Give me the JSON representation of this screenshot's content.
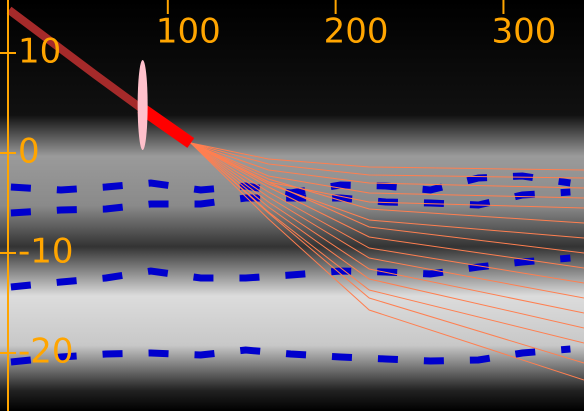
{
  "chart_data": {
    "type": "line",
    "xlim": [
      0,
      348
    ],
    "ylim": [
      -25.8,
      15.3
    ],
    "xticks": [
      100,
      200,
      300
    ],
    "yticks": [
      10,
      0,
      -10,
      -20
    ],
    "axis_color": "#ffa500",
    "trajectory": [
      {
        "color": "#a52a2a",
        "x": [
          5.4,
          57,
          83.9
        ],
        "values": [
          14.3,
          7.8,
          4.5
        ]
      },
      {
        "color": "#ff0000",
        "x": [
          83.9,
          113.7
        ],
        "values": [
          4.5,
          1.0
        ]
      }
    ],
    "ellipse": {
      "color": "#ffc0cb",
      "x": 85,
      "y": 4.8,
      "half_height": 4.5
    },
    "lines": {
      "color": "#0000cd",
      "x": [
        6.5,
        36.3,
        63.1,
        89.9,
        119.6,
        146.4,
        173.2,
        203,
        229.8,
        256.5,
        285.1,
        311.3,
        339.9
      ],
      "series": [
        [
          -3.4,
          -3.7,
          -3.4,
          -3.0,
          -3.7,
          -3.3,
          -4.0,
          -3.2,
          -3.3,
          -3.7,
          -2.5,
          -2.3,
          -3.0
        ],
        [
          -6.0,
          -5.7,
          -5.6,
          -5.1,
          -5.1,
          -4.5,
          -4.5,
          -4.5,
          -4.9,
          -5.0,
          -5.2,
          -4.2,
          -3.9
        ],
        [
          -13.4,
          -12.9,
          -12.5,
          -11.8,
          -12.5,
          -12.5,
          -12.2,
          -11.8,
          -11.9,
          -12.1,
          -11.4,
          -10.9,
          -10.5
        ],
        [
          -20.9,
          -20.4,
          -20.1,
          -20.0,
          -20.2,
          -19.7,
          -20.1,
          -20.4,
          -20.6,
          -20.8,
          -20.7,
          -20.0,
          -19.6
        ]
      ]
    },
    "fan": {
      "color": "#ff7f50",
      "x": [
        113.7,
        160,
        220,
        348
      ],
      "series": [
        [
          1.0,
          -0.6,
          -1.4,
          -1.7
        ],
        [
          1.0,
          -1.1,
          -2.2,
          -2.5
        ],
        [
          1.0,
          -1.7,
          -3.0,
          -3.5
        ],
        [
          1.0,
          -2.3,
          -4.0,
          -4.5
        ],
        [
          1.0,
          -2.9,
          -4.9,
          -5.5
        ],
        [
          1.0,
          -2.6,
          -5.6,
          -7
        ],
        [
          1.0,
          -3.1,
          -6.7,
          -8.5
        ],
        [
          1.0,
          -2.9,
          -7.4,
          -10
        ],
        [
          1.0,
          -3.4,
          -8.4,
          -11.5
        ],
        [
          1.0,
          -3.9,
          -9.5,
          -13
        ],
        [
          1.0,
          -4.4,
          -10.5,
          -14.5
        ],
        [
          1.0,
          -4.9,
          -11.6,
          -16
        ],
        [
          1.0,
          -5.4,
          -12.6,
          -17.5
        ],
        [
          1.0,
          -5.9,
          -13.7,
          -19
        ],
        [
          1.0,
          -6.0,
          -14.5,
          -21
        ],
        [
          1.0,
          -6.6,
          -15.7,
          -22.7
        ]
      ]
    }
  }
}
